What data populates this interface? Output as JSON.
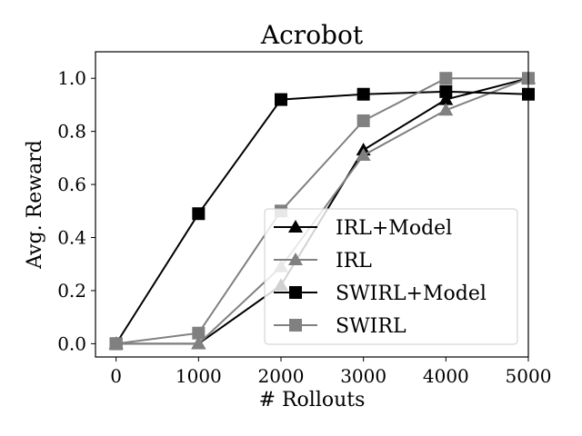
{
  "chart_data": {
    "type": "line",
    "title": "Acrobot",
    "xlabel": "# Rollouts",
    "ylabel": "Avg. Reward",
    "xlim": [
      -250,
      5000
    ],
    "ylim": [
      -0.05,
      1.1
    ],
    "xticks": [
      "0",
      "1000",
      "2000",
      "3000",
      "4000",
      "5000"
    ],
    "xtick_values": [
      0,
      1000,
      2000,
      3000,
      4000,
      5000
    ],
    "yticks": [
      "0.0",
      "0.2",
      "0.4",
      "0.6",
      "0.8",
      "1.0"
    ],
    "ytick_values": [
      0.0,
      0.2,
      0.4,
      0.6,
      0.8,
      1.0
    ],
    "grid": false,
    "legend_position": "lower-right",
    "x": [
      0,
      1000,
      2000,
      3000,
      4000,
      5000
    ],
    "series": [
      {
        "name": "IRL+Model",
        "values": [
          0.0,
          0.0,
          0.22,
          0.73,
          0.92,
          1.0
        ],
        "color": "#000000",
        "marker": "triangle"
      },
      {
        "name": "IRL",
        "values": [
          0.0,
          0.0,
          0.29,
          0.71,
          0.88,
          1.0
        ],
        "color": "#808080",
        "marker": "triangle"
      },
      {
        "name": "SWIRL+Model",
        "values": [
          0.0,
          0.49,
          0.92,
          0.94,
          0.95,
          0.94
        ],
        "color": "#000000",
        "marker": "square"
      },
      {
        "name": "SWIRL",
        "values": [
          0.0,
          0.04,
          0.5,
          0.84,
          1.0,
          1.0
        ],
        "color": "#808080",
        "marker": "square"
      }
    ]
  }
}
